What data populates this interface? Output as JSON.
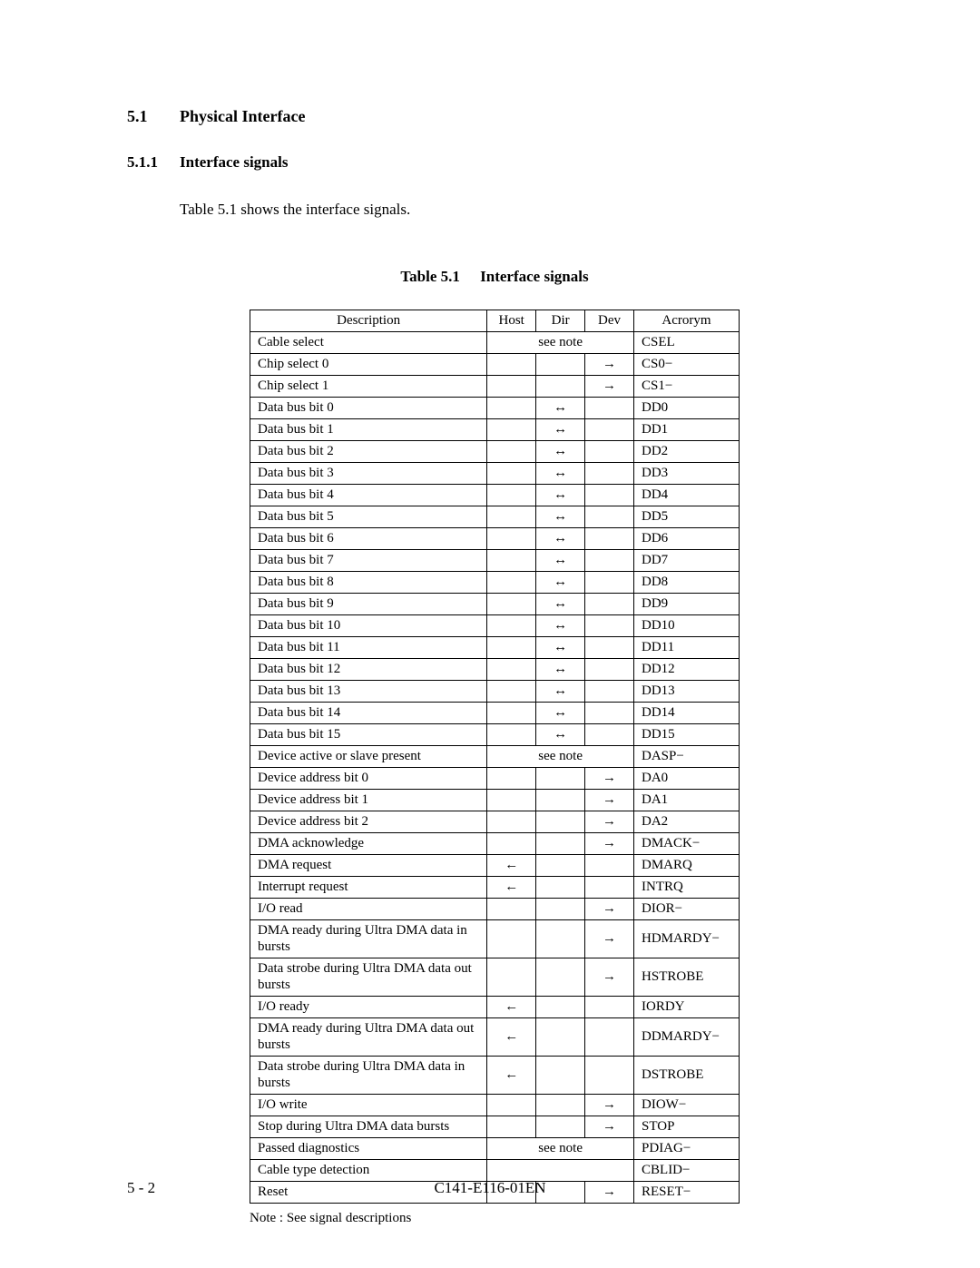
{
  "section": {
    "num": "5.1",
    "title": "Physical Interface"
  },
  "subsection": {
    "num": "5.1.1",
    "title": "Interface signals"
  },
  "intro": "Table 5.1 shows the interface signals.",
  "tableCaption": {
    "label": "Table 5.1",
    "title": "Interface signals"
  },
  "columns": [
    "Description",
    "Host",
    "Dir",
    "Dev",
    "Acrorym"
  ],
  "seeNoteText": "see note",
  "symbols": {
    "left": "←",
    "right": "→",
    "both": "↔"
  },
  "rows": [
    {
      "desc": "Cable select",
      "merged": "note",
      "acr": "CSEL"
    },
    {
      "desc": "Chip select 0",
      "host": "",
      "dir": "",
      "dev": "right",
      "acr": "CS0−"
    },
    {
      "desc": "Chip select 1",
      "host": "",
      "dir": "",
      "dev": "right",
      "acr": "CS1−"
    },
    {
      "desc": "Data bus bit 0",
      "host": "",
      "dir": "both",
      "dev": "",
      "acr": "DD0"
    },
    {
      "desc": "Data bus bit 1",
      "host": "",
      "dir": "both",
      "dev": "",
      "acr": "DD1"
    },
    {
      "desc": "Data bus bit 2",
      "host": "",
      "dir": "both",
      "dev": "",
      "acr": "DD2"
    },
    {
      "desc": "Data bus bit 3",
      "host": "",
      "dir": "both",
      "dev": "",
      "acr": "DD3"
    },
    {
      "desc": "Data bus bit 4",
      "host": "",
      "dir": "both",
      "dev": "",
      "acr": "DD4"
    },
    {
      "desc": "Data bus bit 5",
      "host": "",
      "dir": "both",
      "dev": "",
      "acr": "DD5"
    },
    {
      "desc": "Data bus bit 6",
      "host": "",
      "dir": "both",
      "dev": "",
      "acr": "DD6"
    },
    {
      "desc": "Data bus bit 7",
      "host": "",
      "dir": "both",
      "dev": "",
      "acr": "DD7"
    },
    {
      "desc": "Data bus bit 8",
      "host": "",
      "dir": "both",
      "dev": "",
      "acr": "DD8"
    },
    {
      "desc": "Data bus bit 9",
      "host": "",
      "dir": "both",
      "dev": "",
      "acr": "DD9"
    },
    {
      "desc": "Data bus bit 10",
      "host": "",
      "dir": "both",
      "dev": "",
      "acr": "DD10"
    },
    {
      "desc": "Data bus bit 11",
      "host": "",
      "dir": "both",
      "dev": "",
      "acr": "DD11"
    },
    {
      "desc": "Data bus bit 12",
      "host": "",
      "dir": "both",
      "dev": "",
      "acr": "DD12"
    },
    {
      "desc": "Data bus bit 13",
      "host": "",
      "dir": "both",
      "dev": "",
      "acr": "DD13"
    },
    {
      "desc": "Data bus bit 14",
      "host": "",
      "dir": "both",
      "dev": "",
      "acr": "DD14"
    },
    {
      "desc": "Data bus bit 15",
      "host": "",
      "dir": "both",
      "dev": "",
      "acr": "DD15"
    },
    {
      "desc": "Device active or slave present",
      "merged": "note",
      "acr": "DASP−"
    },
    {
      "desc": "Device address bit 0",
      "host": "",
      "dir": "",
      "dev": "right",
      "acr": "DA0"
    },
    {
      "desc": "Device address bit 1",
      "host": "",
      "dir": "",
      "dev": "right",
      "acr": "DA1"
    },
    {
      "desc": "Device address bit 2",
      "host": "",
      "dir": "",
      "dev": "right",
      "acr": "DA2"
    },
    {
      "desc": "DMA acknowledge",
      "host": "",
      "dir": "",
      "dev": "right",
      "acr": "DMACK−"
    },
    {
      "desc": "DMA request",
      "host": "left",
      "dir": "",
      "dev": "",
      "acr": "DMARQ"
    },
    {
      "desc": "Interrupt request",
      "host": "left",
      "dir": "",
      "dev": "",
      "acr": "INTRQ"
    },
    {
      "desc": "I/O read",
      "host": "",
      "dir": "",
      "dev": "right",
      "acr": "DIOR−"
    },
    {
      "desc": "DMA ready during Ultra DMA data in bursts",
      "host": "",
      "dir": "",
      "dev": "right",
      "acr": "HDMARDY−"
    },
    {
      "desc": "Data strobe during Ultra DMA data out bursts",
      "host": "",
      "dir": "",
      "dev": "right",
      "acr": "HSTROBE"
    },
    {
      "desc": "I/O ready",
      "host": "left",
      "dir": "",
      "dev": "",
      "acr": "IORDY"
    },
    {
      "desc": "DMA ready during Ultra DMA data out bursts",
      "host": "left",
      "dir": "",
      "dev": "",
      "acr": "DDMARDY−"
    },
    {
      "desc": "Data strobe during Ultra DMA data in bursts",
      "host": "left",
      "dir": "",
      "dev": "",
      "acr": "DSTROBE"
    },
    {
      "desc": "I/O write",
      "host": "",
      "dir": "",
      "dev": "right",
      "acr": "DIOW−"
    },
    {
      "desc": "Stop during Ultra DMA data bursts",
      "host": "",
      "dir": "",
      "dev": "right",
      "acr": "STOP"
    },
    {
      "desc": "Passed diagnostics",
      "merged": "note",
      "acr": "PDIAG−"
    },
    {
      "desc": "Cable type detection",
      "merged": "blank",
      "acr": "CBLID−"
    },
    {
      "desc": "Reset",
      "host": "",
      "dir": "",
      "dev": "right",
      "acr": "RESET−"
    }
  ],
  "tableNote": "Note : See signal descriptions",
  "footer": {
    "left": "5 - 2",
    "center": "C141-E116-01EN"
  }
}
